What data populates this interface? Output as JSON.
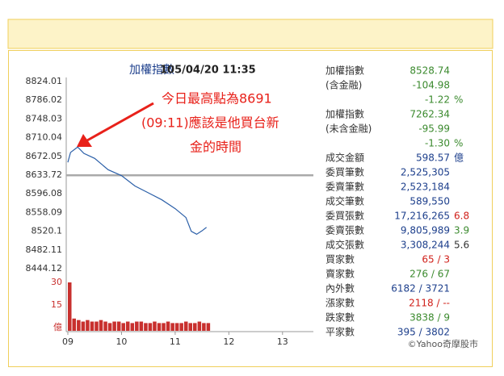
{
  "chart_data": [
    {
      "type": "line",
      "title": "加權指數",
      "subtitle": "105/04/20 11:35",
      "x": [
        9,
        9.05,
        9.183,
        9.3,
        9.5,
        9.75,
        10,
        10.25,
        10.5,
        10.75,
        11,
        11.2,
        11.3,
        11.4,
        11.5,
        11.583
      ],
      "series": [
        {
          "color": "#2b5fa8",
          "values": [
            8660,
            8680,
            8691,
            8678,
            8668,
            8645,
            8633,
            8612,
            8598,
            8584,
            8566,
            8548,
            8520,
            8514,
            8521,
            8528
          ]
        }
      ],
      "xlim": [
        9,
        13.5
      ],
      "xticks": [
        {
          "value": 9,
          "label": "09"
        },
        10,
        11,
        12,
        13
      ],
      "ylim": [
        8444.12,
        8824.01
      ],
      "yticks": [
        8824.01,
        8786.02,
        8748.03,
        8710.04,
        8672.05,
        8633.72,
        8596.08,
        8558.09,
        8520.1,
        8482.11,
        8444.12
      ],
      "annotation": {
        "lines": [
          "今日最高點為8691",
          "(09:11)應該是他買台新",
          "金的時間"
        ],
        "color": "#e8211a"
      }
    },
    {
      "type": "bar",
      "color": "#c8302e",
      "x": [
        9,
        9.083,
        9.167,
        9.25,
        9.333,
        9.417,
        9.5,
        9.583,
        9.667,
        9.75,
        9.833,
        9.917,
        10,
        10.083,
        10.167,
        10.25,
        10.333,
        10.417,
        10.5,
        10.583,
        10.667,
        10.75,
        10.833,
        10.917,
        11,
        11.083,
        11.167,
        11.25,
        11.333,
        11.417,
        11.5,
        11.583
      ],
      "values": [
        30,
        6,
        5,
        4,
        5,
        4,
        4,
        5,
        4,
        3,
        4,
        4,
        3,
        4,
        3,
        4,
        4,
        3,
        3,
        4,
        3,
        3,
        4,
        3,
        3,
        3,
        4,
        3,
        3,
        4,
        3,
        3
      ],
      "xlim": [
        9,
        13.5
      ],
      "ylim": [
        0,
        30
      ],
      "yticks": [
        {
          "value": 30,
          "label": "30"
        },
        15,
        {
          "value": 0,
          "label": "億"
        }
      ],
      "tick_color": "#c8302e"
    }
  ],
  "table": {
    "rows": [
      {
        "label": "加權指數",
        "value": "8528.74",
        "color": "#3b8a2e"
      },
      {
        "label": "(含金融)",
        "value": "-104.98",
        "color": "#3b8a2e"
      },
      {
        "value": "-1.22",
        "suffix": "%",
        "color": "#3b8a2e"
      },
      {
        "label": "加權指數",
        "value": "7262.34",
        "color": "#3b8a2e"
      },
      {
        "label": "(未含金融)",
        "value": "-95.99",
        "color": "#3b8a2e"
      },
      {
        "value": "-1.30",
        "suffix": "%",
        "color": "#3b8a2e"
      },
      {
        "label": "成交金額",
        "value": "598.57",
        "suffix": "億",
        "color": "#1d3f8c"
      },
      {
        "label": "委買筆數",
        "value": "2,525,305",
        "color": "#1d3f8c"
      },
      {
        "label": "委賣筆數",
        "value": "2,523,184",
        "color": "#1d3f8c"
      },
      {
        "label": "成交筆數",
        "value": "589,550",
        "color": "#1d3f8c"
      },
      {
        "label": "委買張數",
        "value": "17,216,265",
        "suffix": "6.8",
        "color": "#1d3f8c",
        "suffix_color": "#d0201a"
      },
      {
        "label": "委賣張數",
        "value": "9,805,989",
        "suffix": "3.9",
        "color": "#1d3f8c",
        "suffix_color": "#3b8a2e"
      },
      {
        "label": "成交張數",
        "value": "3,308,244",
        "suffix": "5.6",
        "color": "#1d3f8c",
        "suffix_color": "#333333"
      },
      {
        "label": "買家數",
        "value": "65 / 3",
        "color": "#d0201a"
      },
      {
        "label": "賣家數",
        "value": "276 / 67",
        "color": "#3b8a2e"
      },
      {
        "label": "內外數",
        "value": "6182 / 3721",
        "color": "#1d3f8c"
      },
      {
        "label": "漲家數",
        "value": "2118 / --",
        "color": "#d0201a"
      },
      {
        "label": "跌家數",
        "value": "3838 / 9",
        "color": "#3b8a2e"
      },
      {
        "label": "平家數",
        "value": "395 / 3802",
        "color": "#1d3f8c"
      }
    ],
    "credit": "©Yahoo奇摩股市"
  }
}
